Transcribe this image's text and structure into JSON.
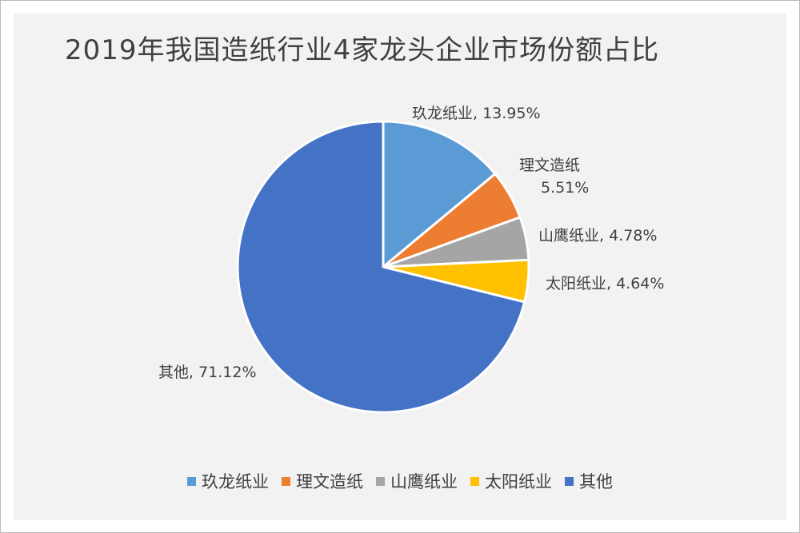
{
  "chart_data": {
    "type": "pie",
    "title": "2019年我国造纸行业4家龙头企业市场份额占比",
    "unit": "%",
    "legend_position": "bottom",
    "slices": [
      {
        "name": "玖龙纸业",
        "value": 13.95,
        "label": "玖龙纸业, 13.95%",
        "color": "#5B9BD5"
      },
      {
        "name": "理文造纸",
        "value": 5.51,
        "label_line1": "理文造纸",
        "label_line2": "5.51%",
        "color": "#ED7D31"
      },
      {
        "name": "山鹰纸业",
        "value": 4.78,
        "label": "山鹰纸业, 4.78%",
        "color": "#A5A5A5"
      },
      {
        "name": "太阳纸业",
        "value": 4.64,
        "label": "太阳纸业, 4.64%",
        "color": "#FFC000"
      },
      {
        "name": "其他",
        "value": 71.12,
        "label": "其他, 71.12%",
        "color": "#4472C4"
      }
    ]
  }
}
